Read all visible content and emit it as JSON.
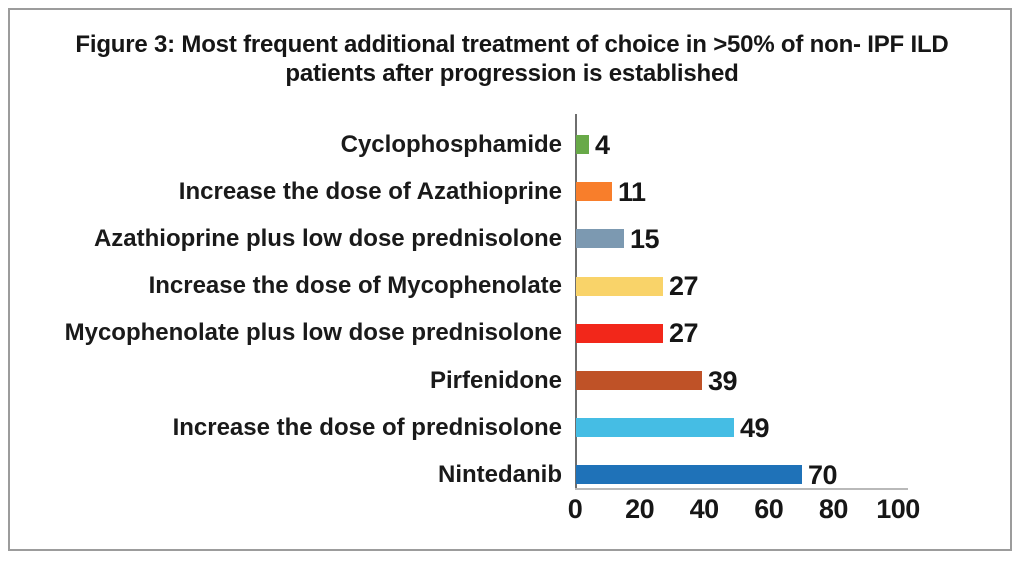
{
  "chart_data": {
    "type": "bar",
    "orientation": "horizontal",
    "title": "Figure 3: Most frequent additional treatment of choice in >50% of non- IPF ILD patients after progression is established",
    "title_lines": [
      "Figure 3: Most frequent additional treatment of choice in >50% of non- IPF ILD",
      "patients after progression is established"
    ],
    "categories": [
      "Cyclophosphamide",
      "Increase the dose of Azathioprine",
      "Azathioprine plus low dose prednisolone",
      "Increase the dose of Mycophenolate",
      "Mycophenolate plus low dose prednisolone",
      "Pirfenidone",
      "Increase the dose of prednisolone",
      "Nintedanib"
    ],
    "values": [
      4,
      11,
      15,
      27,
      27,
      39,
      49,
      70
    ],
    "bar_colors": [
      "#68A948",
      "#F87E2B",
      "#7C99B1",
      "#F9D369",
      "#F2271A",
      "#BF5227",
      "#45BDE4",
      "#1F72B8"
    ],
    "value_labels_shown": true,
    "xlabel": "",
    "ylabel": "",
    "xlim": [
      0,
      100
    ],
    "xticks": [
      "0",
      "20",
      "40",
      "60",
      "80",
      "100"
    ],
    "grid": false,
    "legend": "none"
  },
  "colors": {
    "background": "#ffffff",
    "frame_border": "#9c9c9c",
    "text": "#161616",
    "y_axis_line": "#6e6e6e",
    "x_axis_line": "#b9b9b9"
  }
}
